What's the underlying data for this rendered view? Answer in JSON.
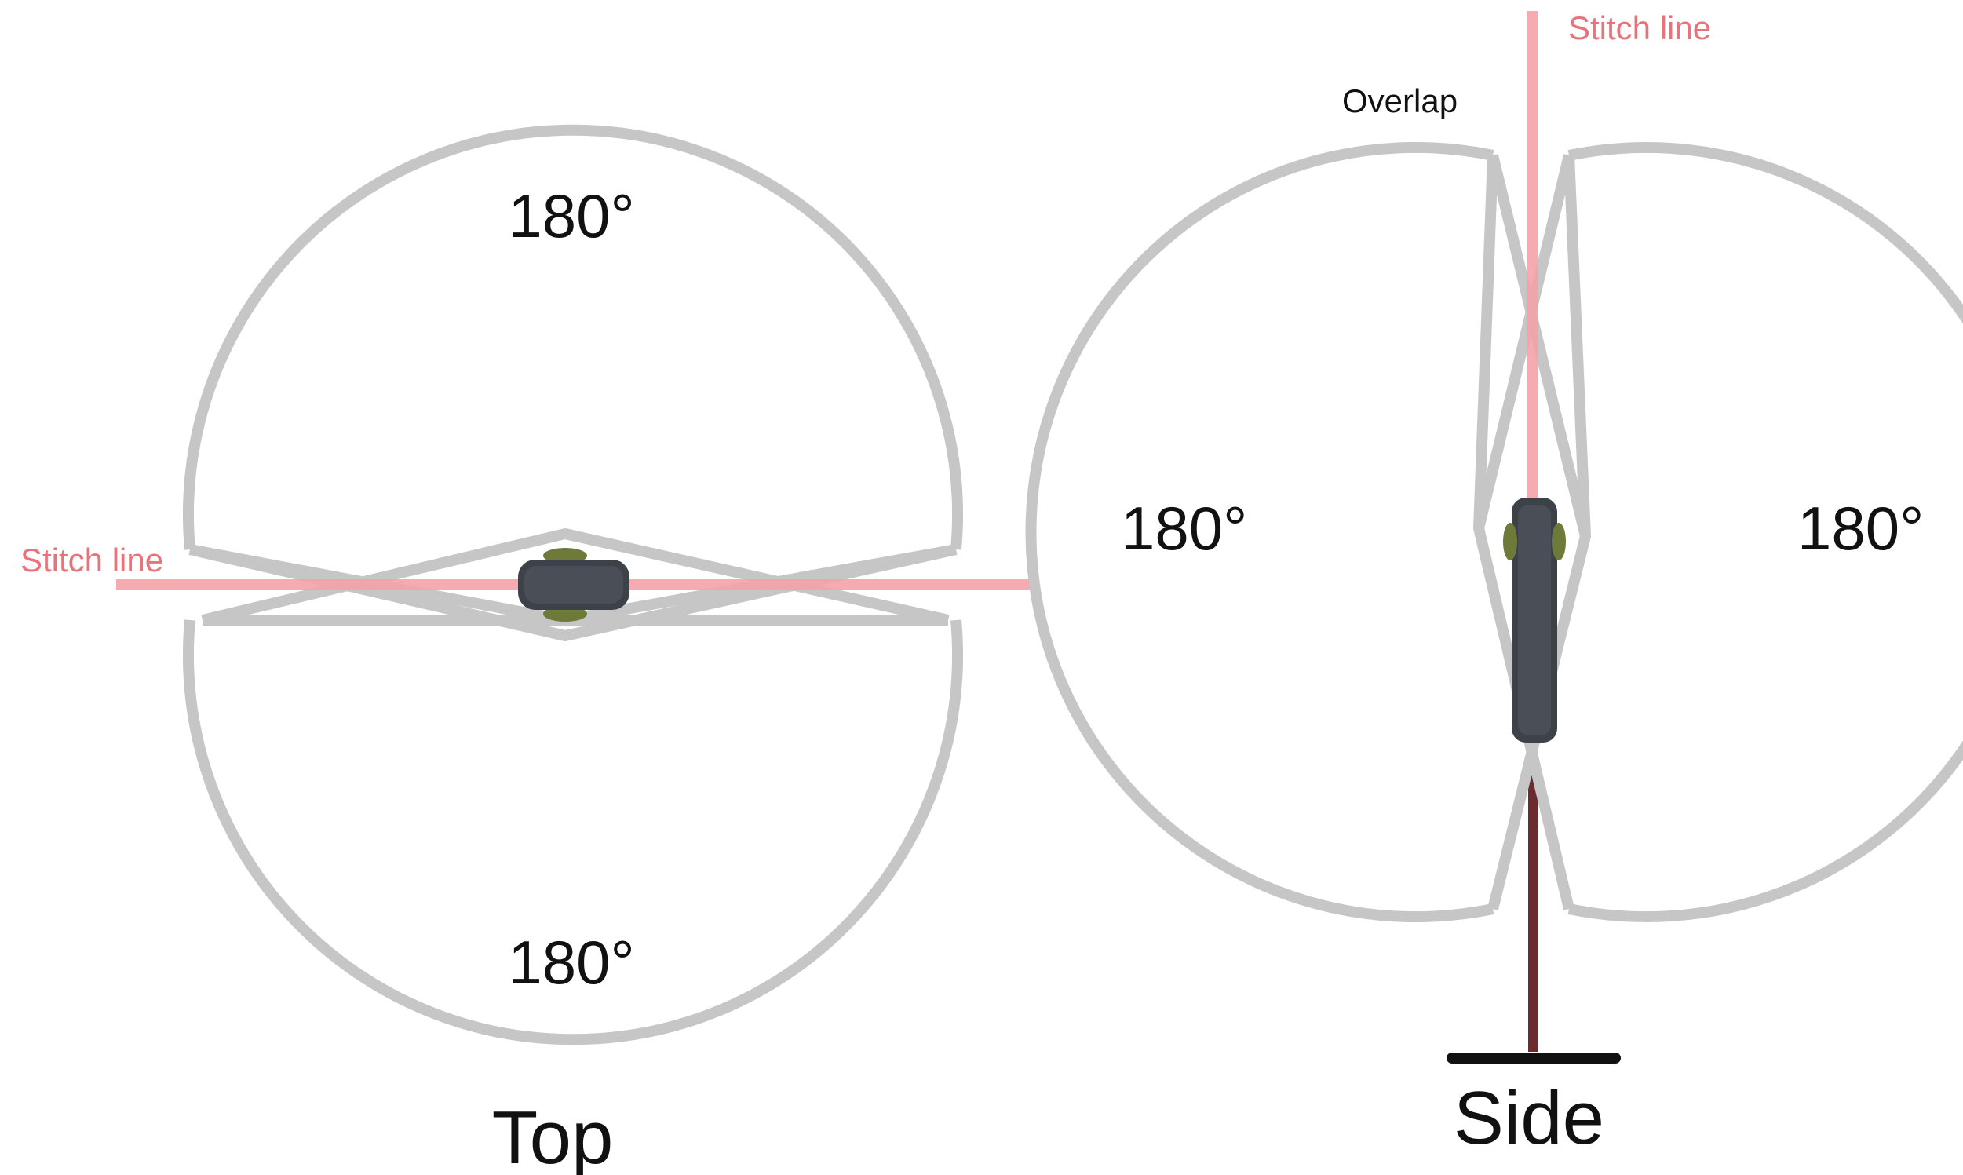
{
  "top_view": {
    "title": "Top",
    "upper_angle": "180°",
    "lower_angle": "180°",
    "stitch_label": "Stitch line"
  },
  "side_view": {
    "title": "Side",
    "left_angle": "180°",
    "right_angle": "180°",
    "stitch_label": "Stitch line",
    "overlap_label": "Overlap"
  },
  "colors": {
    "lens_outline": "#c6c6c6",
    "stitch_line": "#f4a3a8",
    "stitch_text": "#e8737a",
    "camera_body": "#3d4148",
    "pole": "#6b2b2f",
    "base": "#111111"
  }
}
